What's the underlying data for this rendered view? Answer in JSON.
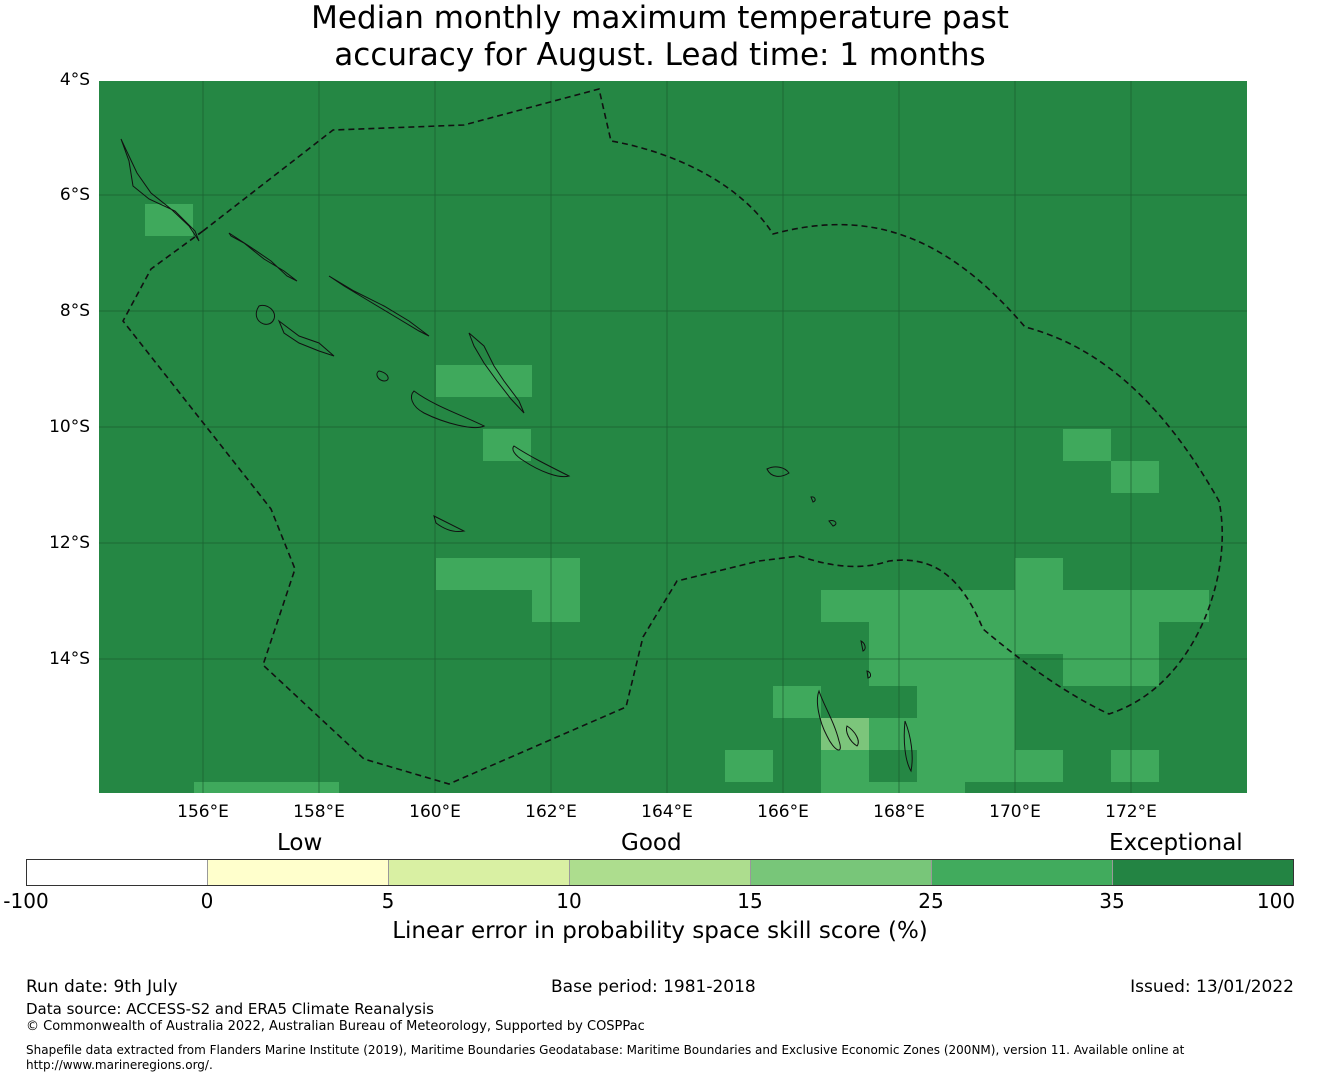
{
  "title": {
    "line1": "Median monthly maximum temperature past",
    "line2": "accuracy for August. Lead time: 1 months"
  },
  "map": {
    "lat_labels": [
      "4°S",
      "6°S",
      "8°S",
      "10°S",
      "12°S",
      "14°S"
    ],
    "lon_labels": [
      "156°E",
      "158°E",
      "160°E",
      "162°E",
      "164°E",
      "166°E",
      "168°E",
      "170°E",
      "172°E"
    ],
    "base_color": "#258744",
    "good_color": "#3fa95c",
    "fair_color": "#7cc57b",
    "boundary_style": "dashed"
  },
  "legend": {
    "categories": [
      "Low",
      "Good",
      "Exceptional"
    ],
    "ticks": [
      "-100",
      "0",
      "5",
      "10",
      "15",
      "25",
      "35",
      "100"
    ],
    "colors": [
      "#ffffff",
      "#ffffcc",
      "#d9f0a3",
      "#addd8e",
      "#78c679",
      "#41ab5d",
      "#238443"
    ],
    "title": "Linear error in probability space skill score (%)"
  },
  "footer": {
    "run_date": "Run date: 9th July",
    "base_period": "Base period: 1981-2018",
    "issued": "Issued: 13/01/2022",
    "data_source": "Data source: ACCESS-S2 and ERA5 Climate Reanalysis",
    "copyright": "© Commonwealth of Australia 2022, Australian Bureau of Meteorology, Supported by COSPPac",
    "shapefile_line1": "Shapefile data extracted from Flanders Marine Institute (2019), Maritime Boundaries Geodatabase: Maritime Boundaries and Exclusive Economic Zones (200NM), version 11. Available online at",
    "shapefile_line2": "http://www.marineregions.org/."
  }
}
